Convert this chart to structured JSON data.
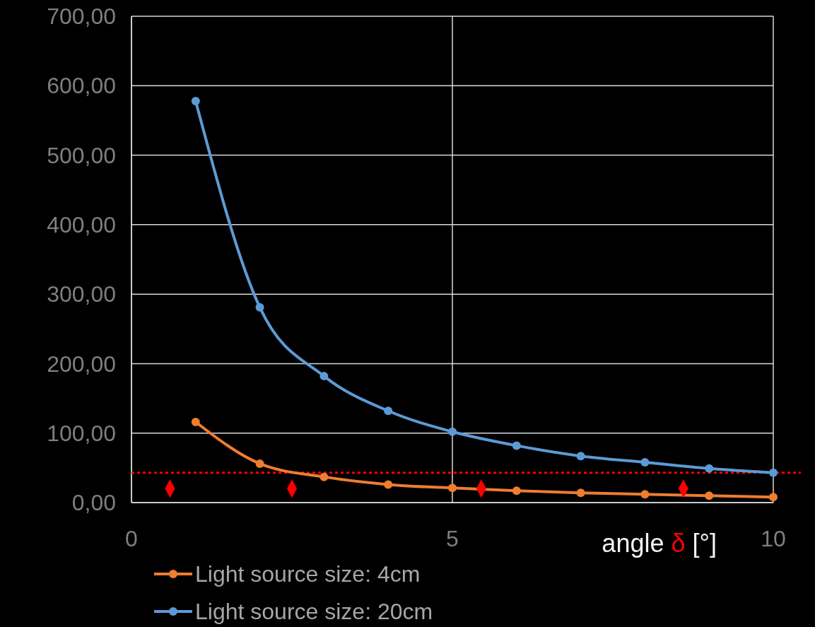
{
  "chart_data": {
    "type": "line",
    "xlabel": "angle δ [°]",
    "xlim": [
      0,
      10
    ],
    "xticks": [
      0,
      5,
      10
    ],
    "ylim": [
      0,
      700
    ],
    "yticks": [
      {
        "value": 0,
        "label": "0,00"
      },
      {
        "value": 100,
        "label": "100,00"
      },
      {
        "value": 200,
        "label": "200,00"
      },
      {
        "value": 300,
        "label": "300,00"
      },
      {
        "value": 400,
        "label": "400,00"
      },
      {
        "value": 500,
        "label": "500,00"
      },
      {
        "value": 600,
        "label": "600,00"
      },
      {
        "value": 700,
        "label": "700,00"
      }
    ],
    "grid": true,
    "legend": "bottom",
    "marker": "circle",
    "series": [
      {
        "name": "Light source size: 4cm",
        "color": "#ed7d31",
        "x": [
          1,
          2,
          3,
          4,
          5,
          6,
          7,
          8,
          9,
          10
        ],
        "values": [
          116,
          56,
          37,
          26,
          21,
          17,
          14,
          12,
          10,
          8
        ]
      },
      {
        "name": "Light source size: 20cm",
        "color": "#5b9bd5",
        "x": [
          1,
          2,
          3,
          4,
          5,
          6,
          7,
          8,
          9,
          10
        ],
        "values": [
          578,
          281,
          182,
          132,
          102,
          82,
          67,
          58,
          49,
          43
        ]
      },
      {
        "type": "scatter",
        "marker": "diamond",
        "color": "#ff0000",
        "x": [
          0.6,
          2.5,
          5.45,
          8.6
        ],
        "values": [
          20,
          20,
          20,
          20
        ]
      }
    ],
    "ref_lines": [
      {
        "axis": "y",
        "value": 43,
        "color": "#ff0000",
        "line_style": "dotted"
      }
    ]
  }
}
